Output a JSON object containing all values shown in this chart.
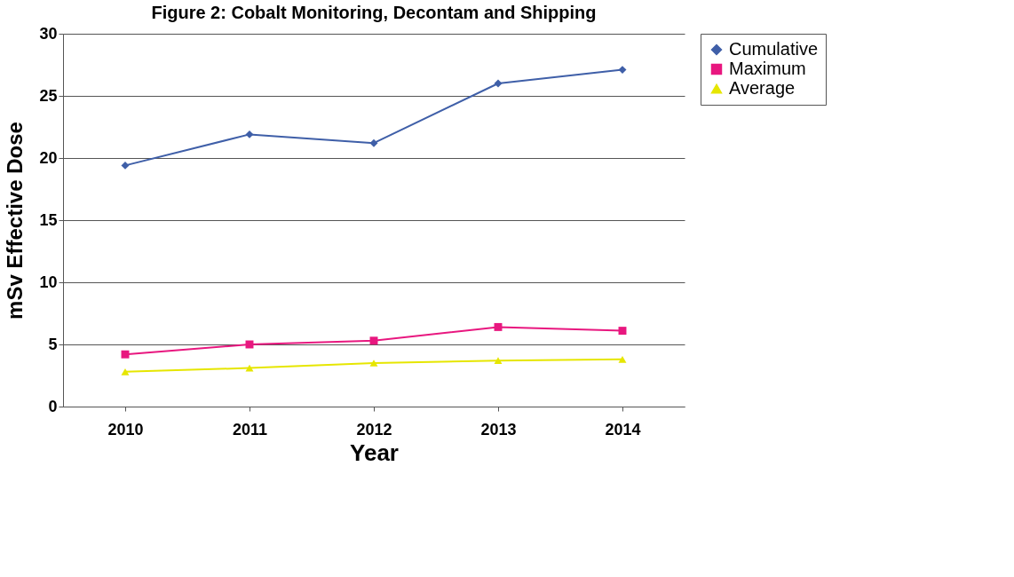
{
  "chart_data": {
    "type": "line",
    "title": "Figure 2: Cobalt Monitoring, Decontam and Shipping",
    "xlabel": "Year",
    "ylabel": "mSv Effective Dose",
    "categories": [
      "2010",
      "2011",
      "2012",
      "2013",
      "2014"
    ],
    "series": [
      {
        "name": "Cumulative",
        "color": "#3f5fa8",
        "marker": "diamond",
        "values": [
          19.4,
          21.9,
          21.2,
          26.0,
          27.1
        ]
      },
      {
        "name": "Maximum",
        "color": "#e8177f",
        "marker": "square",
        "values": [
          4.2,
          5.0,
          5.3,
          6.4,
          6.1
        ]
      },
      {
        "name": "Average",
        "color": "#e6e600",
        "marker": "triangle",
        "values": [
          2.8,
          3.1,
          3.5,
          3.7,
          3.8
        ]
      }
    ],
    "ylim": [
      0,
      30
    ],
    "yticks": [
      0,
      5,
      10,
      15,
      20,
      25,
      30
    ],
    "grid": "y",
    "legend": "right",
    "line_style": "solid"
  }
}
